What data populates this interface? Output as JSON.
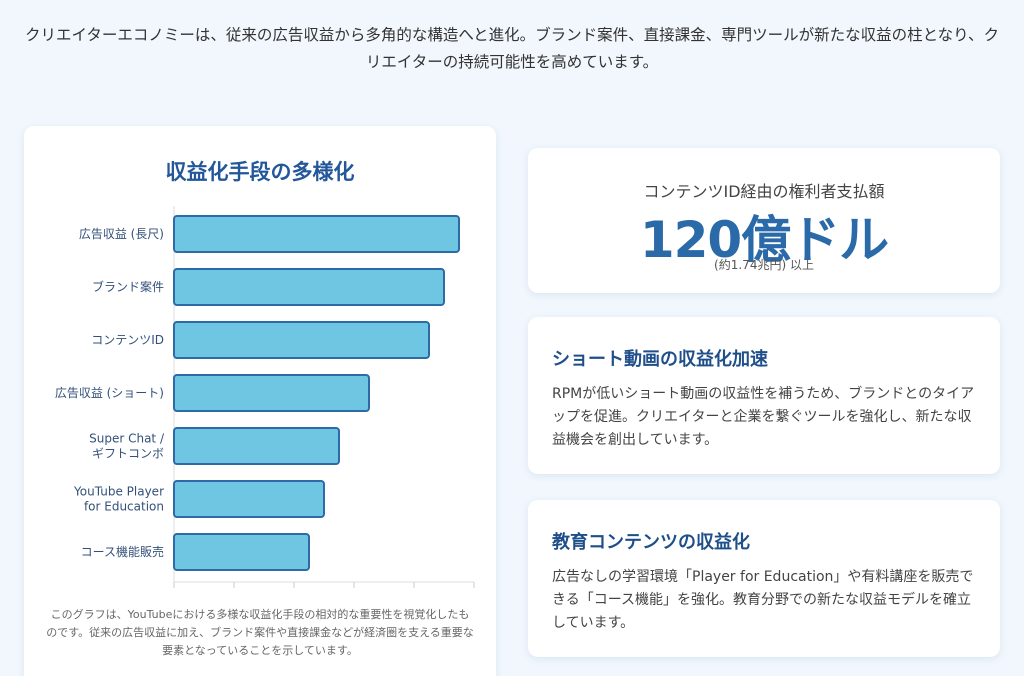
{
  "intro": "クリエイターエコノミーは、従来の広告収益から多角的な構造へと進化。ブランド案件、直接課金、専門ツールが新たな収益の柱となり、クリエイターの持続可能性を高めています。",
  "chart_card": {
    "title": "収益化手段の多様化",
    "caption": "このグラフは、YouTubeにおける多様な収益化手段の相対的な重要性を視覚化したものです。従来の広告収益に加え、ブランド案件や直接課金などが経済圏を支える重要な要素となっていることを示しています。"
  },
  "chart_data": {
    "type": "bar",
    "orientation": "horizontal",
    "title": "収益化手段の多様化",
    "categories": [
      [
        "広告収益 (長尺)"
      ],
      [
        "ブランド案件"
      ],
      [
        "コンテンツID"
      ],
      [
        "広告収益 (ショート)"
      ],
      [
        "Super Chat /",
        "ギフトコンボ"
      ],
      [
        "YouTube Player",
        "for Education"
      ],
      [
        "コース機能販売"
      ]
    ],
    "values": [
      95,
      90,
      85,
      65,
      55,
      50,
      45
    ],
    "xlim": [
      0,
      100
    ],
    "show_tick_labels": false,
    "grid": false,
    "bar_color": "#6ec6e3",
    "bar_edge_color": "#2d6aa6"
  },
  "stat": {
    "label": "コンテンツID経由の権利者支払額",
    "value": "120億ドル",
    "note": "(約1.74兆円) 以上"
  },
  "short_video": {
    "title": "ショート動画の収益化加速",
    "body": "RPMが低いショート動画の収益性を補うため、ブランドとのタイアップを促進。クリエイターと企業を繋ぐツールを強化し、新たな収益機会を創出しています。"
  },
  "education": {
    "title": "教育コンテンツの収益化",
    "body": "広告なしの学習環境「Player for Education」や有料講座を販売できる「コース機能」を強化。教育分野での新たな収益モデルを確立しています。"
  }
}
